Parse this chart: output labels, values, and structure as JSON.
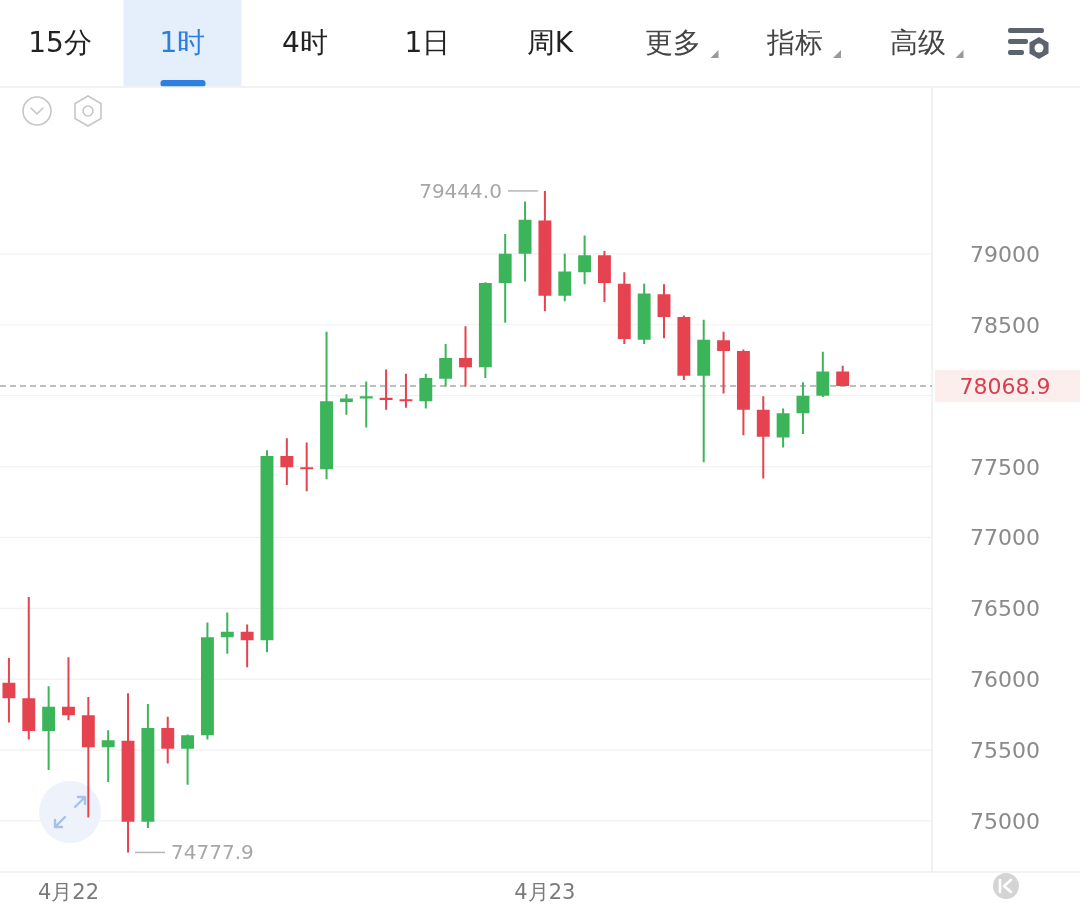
{
  "chart_data": {
    "type": "candlestick",
    "categories": [
      null,
      null,
      null,
      "4月22",
      null,
      null,
      null,
      null,
      null,
      null,
      null,
      null,
      null,
      null,
      null,
      null,
      null,
      null,
      null,
      null,
      null,
      null,
      null,
      null,
      null,
      null,
      null,
      "4月23",
      null,
      null,
      null,
      null,
      null,
      null,
      null,
      null,
      null,
      null,
      null,
      null,
      null,
      null,
      null
    ],
    "ohlc": [
      [
        75975,
        76150,
        75695,
        75865
      ],
      [
        75865,
        76580,
        75575,
        75635
      ],
      [
        75635,
        75950,
        75360,
        75805
      ],
      [
        75805,
        76155,
        75710,
        75745
      ],
      [
        75745,
        75875,
        75025,
        75520
      ],
      [
        75520,
        75640,
        75275,
        75570
      ],
      [
        75565,
        75900,
        74777.9,
        74995
      ],
      [
        74995,
        75825,
        74950,
        75655
      ],
      [
        75655,
        75735,
        75405,
        75510
      ],
      [
        75510,
        75610,
        75255,
        75605
      ],
      [
        75605,
        76400,
        75575,
        76295
      ],
      [
        76295,
        76470,
        76180,
        76335
      ],
      [
        76335,
        76385,
        76085,
        76275
      ],
      [
        76275,
        77615,
        76190,
        77575
      ],
      [
        77575,
        77700,
        77370,
        77495
      ],
      [
        77495,
        77670,
        77325,
        77480
      ],
      [
        77480,
        78450,
        77410,
        77960
      ],
      [
        77955,
        78010,
        77865,
        77980
      ],
      [
        77980,
        78100,
        77775,
        77995
      ],
      [
        77985,
        78185,
        77900,
        77970
      ],
      [
        77975,
        78155,
        77915,
        77960
      ],
      [
        77960,
        78155,
        77910,
        78125
      ],
      [
        78120,
        78365,
        78065,
        78265
      ],
      [
        78265,
        78490,
        78065,
        78200
      ],
      [
        78200,
        78800,
        78125,
        78795
      ],
      [
        78795,
        79140,
        78515,
        79000
      ],
      [
        79000,
        79370,
        78805,
        79240
      ],
      [
        79235,
        79444.0,
        78595,
        78705
      ],
      [
        78705,
        79000,
        78665,
        78875
      ],
      [
        78870,
        79130,
        78785,
        78990
      ],
      [
        78990,
        79020,
        78660,
        78795
      ],
      [
        78790,
        78870,
        78365,
        78400
      ],
      [
        78395,
        78790,
        78365,
        78720
      ],
      [
        78715,
        78785,
        78405,
        78555
      ],
      [
        78555,
        78565,
        78110,
        78140
      ],
      [
        78140,
        78535,
        77530,
        78395
      ],
      [
        78390,
        78450,
        78015,
        78315
      ],
      [
        78315,
        78325,
        77720,
        77900
      ],
      [
        77900,
        77995,
        77415,
        77710
      ],
      [
        77705,
        77910,
        77635,
        77875
      ],
      [
        77875,
        78095,
        77730,
        78000
      ],
      [
        78000,
        78310,
        77990,
        78170
      ],
      [
        78170,
        78210,
        78068.9,
        78068.9
      ]
    ],
    "colors": [
      "#e5434f",
      "#e5434f",
      "#3cb55a",
      "#e5434f",
      "#e5434f",
      "#3cb55a",
      "#e5434f",
      "#3cb55a",
      "#e5434f",
      "#3cb55a",
      "#3cb55a",
      "#3cb55a",
      "#e5434f",
      "#3cb55a",
      "#e5434f",
      "#e5434f",
      "#3cb55a",
      "#3cb55a",
      "#3cb55a",
      "#e5434f",
      "#e5434f",
      "#3cb55a",
      "#3cb55a",
      "#e5434f",
      "#3cb55a",
      "#3cb55a",
      "#3cb55a",
      "#e5434f",
      "#3cb55a",
      "#3cb55a",
      "#e5434f",
      "#e5434f",
      "#3cb55a",
      "#e5434f",
      "#e5434f",
      "#3cb55a",
      "#e5434f",
      "#e5434f",
      "#e5434f",
      "#3cb55a",
      "#3cb55a",
      "#3cb55a",
      "#e5434f"
    ],
    "ylim": [
      74640,
      80170
    ],
    "yticks": [
      75000,
      75500,
      76000,
      76500,
      77000,
      77500,
      {
        "value": 78000,
        "label": null
      },
      78500,
      79000
    ],
    "grid": "y",
    "ref_lines": [
      {
        "axis": "y",
        "value": 78068.9,
        "label": "78068.9",
        "color": "#a8a8a8",
        "line_style": "dashed"
      }
    ],
    "annotations": [
      "15分",
      "1时",
      "4时",
      "1日",
      "周K",
      "更多",
      "指标",
      "高级",
      {
        "text": "79444.0",
        "x": "4月23",
        "y": 79444.0
      },
      "74777.9"
    ]
  }
}
